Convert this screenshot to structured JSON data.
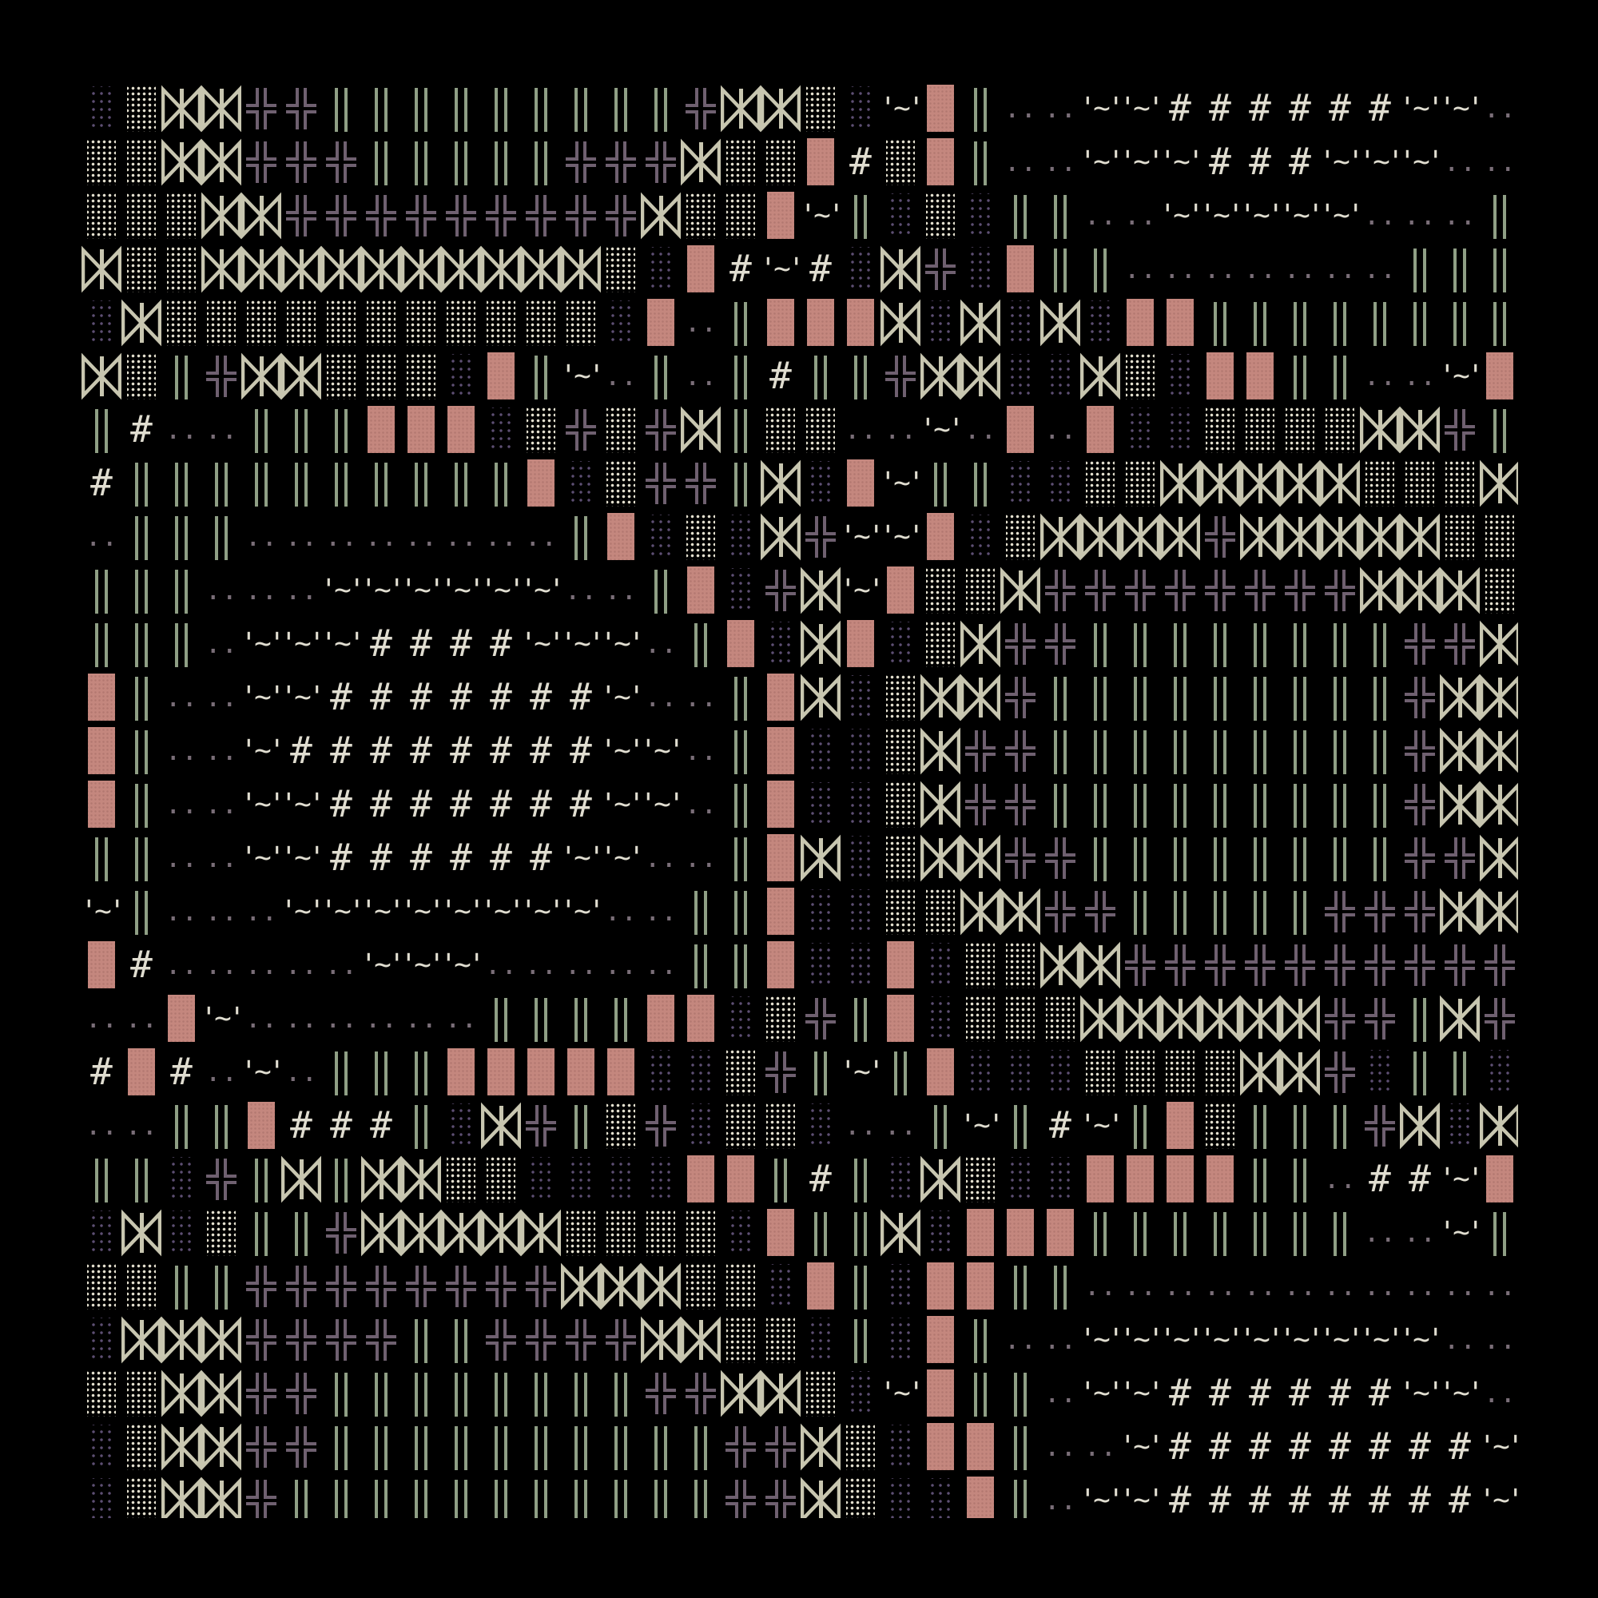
{
  "palette": {
    "background": "#000000",
    "bowtie": "#c8c6b0",
    "cross": "#6f6070",
    "bars": "#8f9f85",
    "dense_dots": "#e4e0cf",
    "sparse_dots": "#5d4f73",
    "block": "#c4877e",
    "text": "#e0ddd0"
  },
  "glyphs": {
    "X": "bowtie-icon",
    "+": "double-cross-icon",
    "|": "double-bar",
    "D": "dense-dot-block",
    "d": "sparse-dot-block",
    "R": "pink-block",
    "#": "#",
    "~": "'~'",
    ".": ".."
  },
  "grid": {
    "rows": [
      "dDXX++|||||||||+XXDd~R|..~~######~~.|R",
      "DDXX+++|||||+++XDDR#DR|..~~~###~~~..|",
      "DDDXX+++++++++XDDR~|dDd||..~~~~~...||",
      "XDDXXXXXXXXXXDdR#~#dX+dR||.......|||",
      "dXDDDDDDDDDDDdR.|RRRXdXdXdRR|||||||||",
      "XD|+XXDDDdR|~.|.|#||+XXddXDdRR||..~R",
      "|#..|||RRRdD+D+X|DD..~.R.RddDDDDXX+||",
      "#||||||||||RdD++|XdR~||ddDDXXXXXDDDX",
      ".|||........|RdDdX+~~RdDXXXX+XXXXXDD",
      "|||...~~~~~~..|Rd+X~RDDX++++++++XXXD",
      "|||.~~~####~~~.|RdXRdDX++||||||||++XXD",
      "R|..~~#######~..|RXdDXX+|||||||||+XXD",
      "R|..~########~~.|RddDX++|||||||||+XXD",
      "R|..~~#######~~.|RddDX++|||||||||+XXD",
      "||..~~######~~..|RXdDXX++||||||||++XXD",
      "~|...~~~~~~~~..||RddDDXX++|||||+++XXX+",
      "R#.....~~~.....||RddRdDDXX++++++++++||",
      "..R~......||||RRdD+|RdDDDXXXXXX++|X+d",
      "#R#.~.|||RRRRRddD+|~|RdddDDDDXX+d||dd",
      "..||R###|dX+|D+dDDd..|~|#~|RD|||+XdXd",
      "||d+|X|XXDDddddRR|#|dXDddRRRR||.##~R",
      "dXdD||+XXXXXDDDDdR||XdRRR|||||||..~|#.",
      "DD||++++++++XXXDDdR|dRR||...........#",
      "dXXX++++||++++XXDDd|dR|..~~~~~~~~~....~",
      "DDXX++||||||||++XXDd~R||.~~######~~..|",
      "dDXX++||||||||||++XDdRR|..~########~..|R",
      "dDXX+|||||||||||++XDddR|.~~########~.|R"
    ]
  }
}
